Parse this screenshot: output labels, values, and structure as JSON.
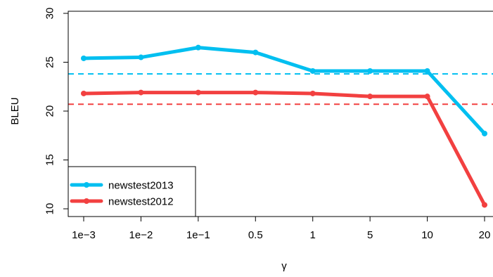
{
  "chart_data": {
    "type": "line",
    "categories": [
      "1e−3",
      "1e−2",
      "1e−1",
      "0.5",
      "1",
      "5",
      "10",
      "20"
    ],
    "xlabel": "γ",
    "ylabel": "BLEU",
    "ylim": [
      10,
      30
    ],
    "yticks": [
      10,
      15,
      20,
      25,
      30
    ],
    "grid": false,
    "legend_position": "bottom-left",
    "series": [
      {
        "name": "newstest2013",
        "color": "#00BFF0",
        "values": [
          25.4,
          25.5,
          26.5,
          26.0,
          24.1,
          24.1,
          24.1,
          17.7
        ],
        "baseline": 23.8
      },
      {
        "name": "newstest2012",
        "color": "#F24040",
        "values": [
          21.8,
          21.9,
          21.9,
          21.9,
          21.8,
          21.5,
          21.5,
          10.4
        ],
        "baseline": 20.7
      }
    ]
  }
}
